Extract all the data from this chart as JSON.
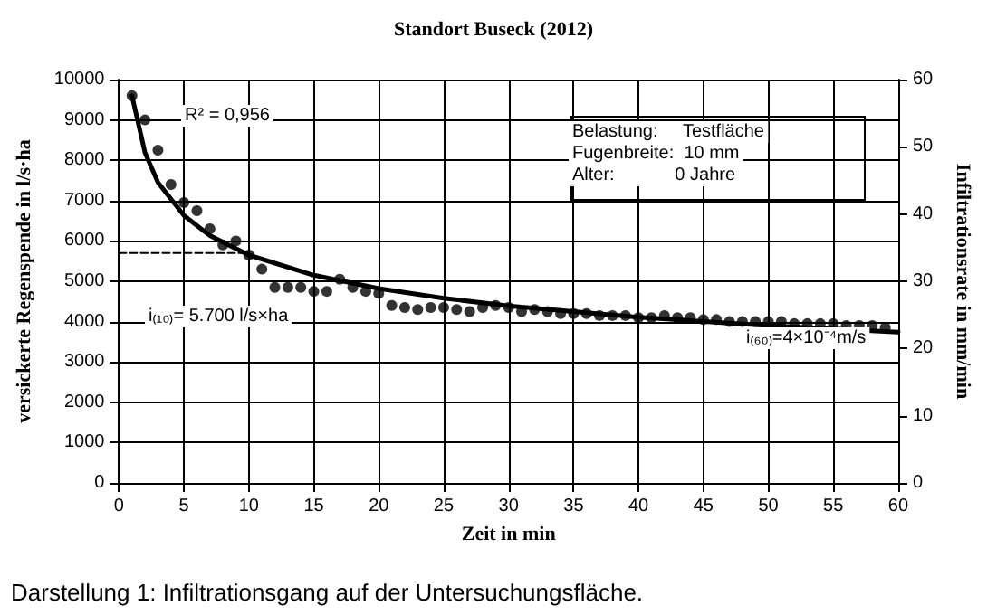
{
  "chart_data": {
    "type": "scatter",
    "title": "Standort Buseck (2012)",
    "xlabel": "Zeit in min",
    "ylabel": "versickerte Regenspende in l/s·ha",
    "y2label": "Infiltrationsrate in mm/min",
    "xlim": [
      0,
      60
    ],
    "xticks": [
      0,
      5,
      10,
      15,
      20,
      25,
      30,
      35,
      40,
      45,
      50,
      55,
      60
    ],
    "ylim": [
      0,
      10000
    ],
    "yticks": [
      0,
      1000,
      2000,
      3000,
      4000,
      5000,
      6000,
      7000,
      8000,
      9000,
      10000
    ],
    "y2lim": [
      0,
      60
    ],
    "y2ticks": [
      0,
      10,
      20,
      30,
      40,
      50,
      60
    ],
    "grid": true,
    "series": [
      {
        "color": "#000000",
        "marker": "circle",
        "x": [
          1,
          2,
          3,
          4,
          5,
          6,
          7,
          8,
          9,
          10,
          11,
          12,
          13,
          14,
          15,
          16,
          17,
          18,
          19,
          20,
          21,
          22,
          23,
          24,
          25,
          26,
          27,
          28,
          29,
          30,
          31,
          32,
          33,
          34,
          35,
          36,
          37,
          38,
          39,
          40,
          41,
          42,
          43,
          44,
          45,
          46,
          47,
          48,
          49,
          50,
          51,
          52,
          53,
          54,
          55,
          56,
          57,
          58,
          59
        ],
        "values": [
          9600,
          9000,
          8250,
          7400,
          6950,
          6750,
          6300,
          5900,
          6000,
          5650,
          5300,
          4850,
          4850,
          4850,
          4750,
          4750,
          5050,
          4850,
          4750,
          4700,
          4400,
          4350,
          4300,
          4350,
          4350,
          4300,
          4250,
          4350,
          4400,
          4350,
          4250,
          4300,
          4250,
          4200,
          4200,
          4200,
          4150,
          4150,
          4150,
          4100,
          4100,
          4150,
          4100,
          4100,
          4050,
          4050,
          4000,
          4000,
          4000,
          4000,
          4000,
          3950,
          3950,
          3950,
          3950,
          3900,
          3900,
          3900,
          3850
        ]
      },
      {
        "type": "line",
        "color": "#000000",
        "marker": "none",
        "line_style": "solid",
        "x": [
          1,
          2,
          3,
          5,
          7,
          10,
          15,
          20,
          25,
          30,
          40,
          50,
          60
        ],
        "values": [
          9600,
          8190,
          7450,
          6630,
          6130,
          5650,
          5150,
          4820,
          4580,
          4390,
          4110,
          3900,
          3740
        ]
      },
      {
        "type": "line",
        "color": "#000000",
        "marker": "none",
        "line_style": "dashed",
        "x": [
          0,
          10
        ],
        "values": [
          5700,
          5700
        ]
      }
    ],
    "annotations": [
      "Belastung:     Testfläche\nFugenbreite:  10 mm\nAlter:            0 Jahre",
      "Darstellung 1: Infiltrationsgang auf der Untersuchungsfläche.",
      "R² = 0,956",
      "i₍₁₀₎= 5.700 l/s×ha",
      "i₍₆₀₎=4×10⁻⁴m/s"
    ]
  }
}
